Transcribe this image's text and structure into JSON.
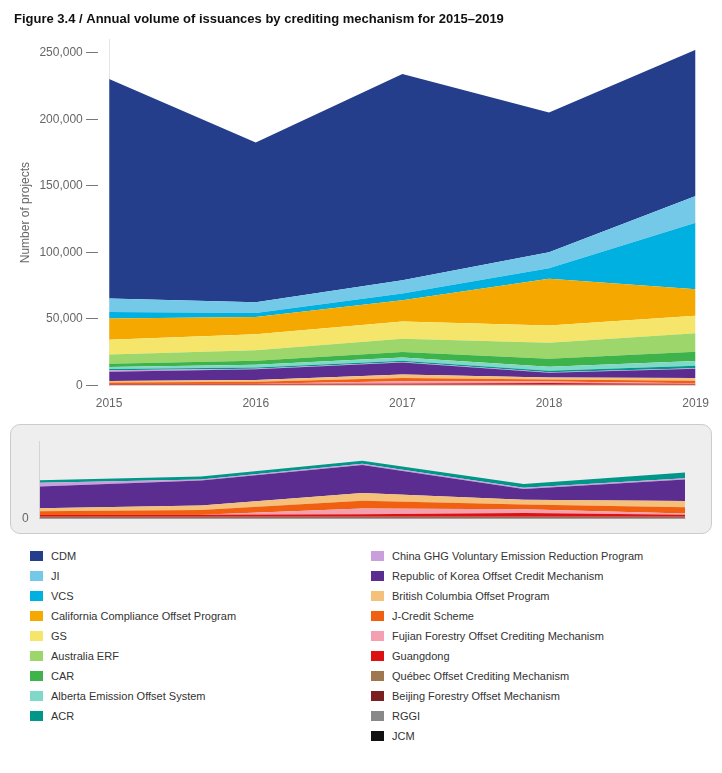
{
  "chart_data": [
    {
      "type": "area",
      "stacked": true,
      "title": "Figure 3.4 / Annual volume of issuances by crediting mechanism for 2015–2019",
      "ylabel": "Number of projects",
      "x": [
        2015,
        2016,
        2017,
        2018,
        2019
      ],
      "xlim": [
        2015,
        2019
      ],
      "xticks": [
        2015,
        2016,
        2017,
        2018,
        2019
      ],
      "ylim": [
        0,
        260000
      ],
      "yticks": [
        {
          "value": 0,
          "label": "0 —"
        },
        {
          "value": 50000,
          "label": "50,000 —"
        },
        {
          "value": 100000,
          "label": "100,000 —"
        },
        {
          "value": 150000,
          "label": "150,000 —"
        },
        {
          "value": 200000,
          "label": "200,000 —"
        },
        {
          "value": 250000,
          "label": "250,000 —"
        }
      ],
      "grid": false,
      "legend": "bottom",
      "series": [
        {
          "name": "JCM",
          "color": "#111111",
          "values": [
            100,
            100,
            100,
            100,
            100
          ]
        },
        {
          "name": "RGGI",
          "color": "#888888",
          "values": [
            100,
            100,
            100,
            100,
            100
          ]
        },
        {
          "name": "Beijing Forestry Offset Mechanism",
          "color": "#7b2020",
          "values": [
            200,
            200,
            200,
            200,
            200
          ]
        },
        {
          "name": "Québec Offset Crediting Mechanism",
          "color": "#a07850",
          "values": [
            300,
            300,
            300,
            300,
            300
          ]
        },
        {
          "name": "Guangdong",
          "color": "#dd1111",
          "values": [
            500,
            600,
            800,
            1200,
            600
          ]
        },
        {
          "name": "Fujian Forestry Offset Crediting Mechanism",
          "color": "#f4a0b0",
          "values": [
            0,
            0,
            1800,
            1200,
            400
          ]
        },
        {
          "name": "J-Credit Scheme",
          "color": "#f06010",
          "values": [
            1200,
            1500,
            2500,
            1500,
            2000
          ]
        },
        {
          "name": "British Columbia Offset Program",
          "color": "#f4c07a",
          "values": [
            1000,
            1500,
            2500,
            1500,
            2000
          ]
        },
        {
          "name": "Republic of Korea Offset Credit Mechanism",
          "color": "#5c2d91",
          "values": [
            7000,
            8000,
            9000,
            3500,
            7000
          ]
        },
        {
          "name": "China GHG Voluntary Emission Reduction Program",
          "color": "#c9a0dc",
          "values": [
            1200,
            400,
            400,
            400,
            400
          ]
        },
        {
          "name": "ACR",
          "color": "#009688",
          "values": [
            800,
            900,
            1000,
            1200,
            1800
          ]
        },
        {
          "name": "Alberta Emission Offset System",
          "color": "#7fd8c8",
          "values": [
            1500,
            2000,
            2500,
            3000,
            3500
          ]
        },
        {
          "name": "CAR",
          "color": "#3db34a",
          "values": [
            2500,
            3000,
            4000,
            6000,
            7000
          ]
        },
        {
          "name": "Australia ERF",
          "color": "#9dd66b",
          "values": [
            7000,
            8000,
            10000,
            12000,
            14000
          ]
        },
        {
          "name": "GS",
          "color": "#f5e66b",
          "values": [
            11000,
            12000,
            13000,
            13000,
            13000
          ]
        },
        {
          "name": "California Compliance Offset Program",
          "color": "#f5a800",
          "values": [
            16000,
            13000,
            16000,
            35000,
            20000
          ]
        },
        {
          "name": "VCS",
          "color": "#00b0e0",
          "values": [
            5000,
            3000,
            5000,
            8000,
            50000
          ]
        },
        {
          "name": "JI",
          "color": "#74c8e8",
          "values": [
            10000,
            8000,
            10000,
            12000,
            20000
          ]
        },
        {
          "name": "CDM",
          "color": "#243e8b",
          "values": [
            165000,
            120000,
            155000,
            105000,
            110000
          ]
        }
      ]
    },
    {
      "type": "area",
      "stacked": true,
      "x": [
        2015,
        2016,
        2017,
        2018,
        2019
      ],
      "xlim": [
        2015,
        2019
      ],
      "xticks": [
        2015,
        2016,
        2017,
        2018,
        2019
      ],
      "ylim": [
        0,
        25000
      ],
      "yticks": [
        0
      ],
      "grid": false,
      "tick_labels": "y",
      "series": [
        {
          "name": "JCM",
          "color": "#111111",
          "values": [
            100,
            100,
            100,
            100,
            100
          ]
        },
        {
          "name": "RGGI",
          "color": "#888888",
          "values": [
            100,
            100,
            100,
            100,
            100
          ]
        },
        {
          "name": "Beijing Forestry Offset Mechanism",
          "color": "#7b2020",
          "values": [
            200,
            200,
            200,
            200,
            200
          ]
        },
        {
          "name": "Québec Offset Crediting Mechanism",
          "color": "#a07850",
          "values": [
            300,
            300,
            300,
            300,
            300
          ]
        },
        {
          "name": "Guangdong",
          "color": "#dd1111",
          "values": [
            500,
            600,
            800,
            1200,
            600
          ]
        },
        {
          "name": "Fujian Forestry Offset Crediting Mechanism",
          "color": "#f4a0b0",
          "values": [
            0,
            0,
            1800,
            1200,
            400
          ]
        },
        {
          "name": "J-Credit Scheme",
          "color": "#f06010",
          "values": [
            1200,
            1500,
            2500,
            1500,
            2000
          ]
        },
        {
          "name": "British Columbia Offset Program",
          "color": "#f4c07a",
          "values": [
            1000,
            1500,
            2500,
            1500,
            2000
          ]
        },
        {
          "name": "Republic of Korea Offset Credit Mechanism",
          "color": "#5c2d91",
          "values": [
            7000,
            8000,
            9000,
            3500,
            7000
          ]
        },
        {
          "name": "China GHG Voluntary Emission Reduction Program",
          "color": "#c9a0dc",
          "values": [
            1200,
            400,
            400,
            400,
            400
          ]
        },
        {
          "name": "ACR",
          "color": "#009688",
          "values": [
            800,
            900,
            1000,
            1200,
            1800
          ]
        }
      ]
    }
  ]
}
